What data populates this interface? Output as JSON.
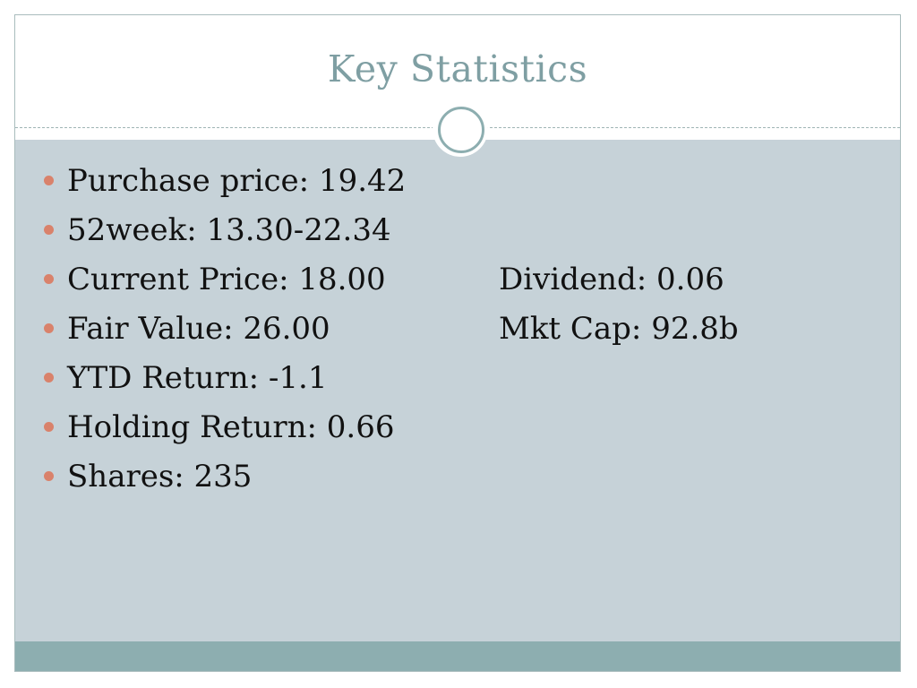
{
  "slide": {
    "title": "Key Statistics",
    "accent_color": "#d9826b",
    "title_color": "#7f9fa3",
    "body_background": "#c6d2d8",
    "footer_color": "#8daeb0",
    "bullets": [
      {
        "left": "Purchase price: 19.42",
        "right": ""
      },
      {
        "left": "52week: 13.30-22.34",
        "right": ""
      },
      {
        "left": "Current Price: 18.00",
        "right": "Dividend: 0.06"
      },
      {
        "left": "Fair Value: 26.00",
        "right": "Mkt Cap: 92.8b"
      },
      {
        "left": "YTD Return: -1.1",
        "right": ""
      },
      {
        "left": "Holding Return: 0.66",
        "right": ""
      },
      {
        "left": "Shares: 235",
        "right": ""
      }
    ]
  }
}
